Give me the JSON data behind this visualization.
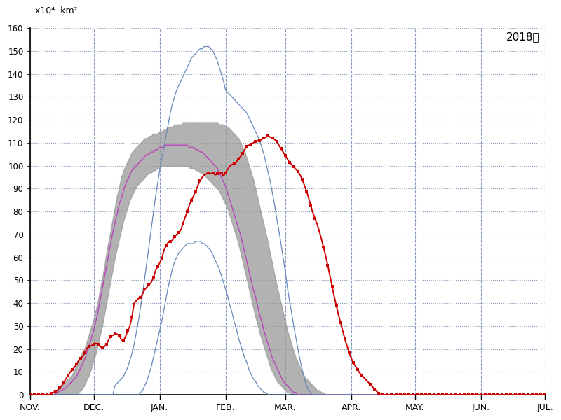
{
  "title": "2018年",
  "ylabel_top": "x10⁴  km²",
  "ylim": [
    0,
    160
  ],
  "yticks": [
    0,
    10,
    20,
    30,
    40,
    50,
    60,
    70,
    80,
    90,
    100,
    110,
    120,
    130,
    140,
    150,
    160
  ],
  "month_labels": [
    "NOV.",
    "DEC.",
    "JAN.",
    "FEB.",
    "MAR.",
    "APR.",
    "MAY.",
    "JUN.",
    "JUL."
  ],
  "background_color": "#ffffff",
  "grid_color": "#8899bb",
  "red_line_color": "#cc0000",
  "blue_line_color": "#6688bb",
  "purple_line_color": "#bb44bb",
  "gray_fill_upper": [
    0,
    0,
    0,
    0,
    0,
    0,
    0,
    0,
    0,
    0,
    0,
    0,
    1,
    2,
    3,
    4,
    5,
    6,
    7,
    8,
    9,
    11,
    13,
    15,
    17,
    19,
    21,
    24,
    27,
    30,
    33,
    37,
    41,
    46,
    51,
    56,
    62,
    67,
    72,
    77,
    82,
    87,
    91,
    95,
    98,
    100,
    102,
    104,
    106,
    107,
    108,
    109,
    110,
    111,
    112,
    112,
    113,
    113,
    114,
    114,
    114,
    115,
    115,
    116,
    116,
    117,
    117,
    117,
    118,
    118,
    118,
    118,
    119,
    119,
    119,
    119,
    119,
    119,
    119,
    119,
    119,
    119,
    119,
    119,
    119,
    119,
    119,
    119,
    119,
    118,
    118,
    118,
    117,
    117,
    116,
    115,
    114,
    113,
    112,
    110,
    108,
    106,
    103,
    100,
    97,
    94,
    90,
    86,
    82,
    78,
    74,
    70,
    66,
    61,
    57,
    52,
    48,
    44,
    40,
    36,
    32,
    28,
    25,
    22,
    19,
    16,
    14,
    12,
    10,
    8,
    7,
    6,
    5,
    4,
    3,
    2,
    2,
    1,
    1,
    0,
    0,
    0,
    0,
    0,
    0,
    0,
    0,
    0,
    0,
    0,
    0,
    0,
    0,
    0,
    0,
    0,
    0,
    0,
    0,
    0,
    0,
    0,
    0,
    0,
    0,
    0,
    0,
    0,
    0,
    0,
    0,
    0,
    0,
    0,
    0,
    0,
    0,
    0,
    0,
    0,
    0,
    0,
    0,
    0,
    0,
    0,
    0,
    0,
    0,
    0,
    0,
    0,
    0,
    0,
    0,
    0,
    0,
    0,
    0,
    0,
    0,
    0,
    0,
    0,
    0,
    0,
    0,
    0,
    0,
    0,
    0,
    0,
    0,
    0,
    0,
    0,
    0,
    0,
    0,
    0,
    0,
    0,
    0,
    0,
    0,
    0,
    0,
    0,
    0,
    0,
    0,
    0,
    0,
    0,
    0,
    0,
    0,
    0,
    0,
    0,
    0,
    0,
    0
  ],
  "gray_fill_lower": [
    0,
    0,
    0,
    0,
    0,
    0,
    0,
    0,
    0,
    0,
    0,
    0,
    0,
    0,
    0,
    0,
    0,
    0,
    0,
    0,
    0,
    0,
    0,
    1,
    2,
    3,
    5,
    7,
    9,
    12,
    15,
    18,
    22,
    26,
    30,
    35,
    40,
    45,
    50,
    55,
    60,
    64,
    68,
    72,
    76,
    79,
    82,
    85,
    87,
    89,
    91,
    92,
    93,
    94,
    95,
    96,
    97,
    97,
    98,
    98,
    99,
    99,
    100,
    100,
    100,
    100,
    100,
    100,
    100,
    100,
    100,
    100,
    100,
    100,
    100,
    99,
    99,
    99,
    98,
    98,
    97,
    97,
    96,
    95,
    94,
    93,
    92,
    91,
    90,
    89,
    87,
    85,
    83,
    81,
    78,
    75,
    72,
    69,
    66,
    62,
    58,
    54,
    50,
    46,
    42,
    38,
    34,
    31,
    27,
    24,
    21,
    18,
    15,
    12,
    10,
    8,
    6,
    5,
    4,
    3,
    2,
    1,
    1,
    0,
    0,
    0,
    0,
    0,
    0,
    0,
    0,
    0,
    0,
    0,
    0,
    0,
    0,
    0,
    0,
    0,
    0,
    0,
    0,
    0,
    0,
    0,
    0,
    0,
    0,
    0,
    0,
    0,
    0,
    0,
    0,
    0,
    0,
    0,
    0,
    0,
    0,
    0,
    0,
    0,
    0,
    0,
    0,
    0,
    0,
    0,
    0,
    0,
    0,
    0,
    0,
    0,
    0,
    0,
    0,
    0,
    0,
    0,
    0,
    0,
    0,
    0,
    0,
    0,
    0,
    0,
    0,
    0,
    0,
    0,
    0,
    0,
    0,
    0,
    0,
    0,
    0,
    0,
    0,
    0,
    0,
    0,
    0,
    0,
    0,
    0,
    0,
    0,
    0,
    0,
    0,
    0,
    0,
    0,
    0,
    0,
    0,
    0,
    0,
    0,
    0,
    0,
    0,
    0,
    0,
    0,
    0,
    0,
    0,
    0,
    0,
    0,
    0,
    0,
    0,
    0,
    0,
    0,
    0
  ],
  "purple_mean": [
    0,
    0,
    0,
    0,
    0,
    0,
    0,
    0,
    0,
    0,
    0,
    0,
    0.5,
    1,
    1.5,
    2,
    2.5,
    3,
    4,
    5,
    6,
    7,
    8,
    10,
    12,
    14,
    16,
    19,
    22,
    25,
    28,
    32,
    36,
    41,
    46,
    51,
    56,
    61,
    66,
    71,
    75,
    79,
    83,
    86,
    89,
    92,
    94,
    96,
    98,
    99,
    100,
    101,
    102,
    103,
    104,
    105,
    105,
    106,
    106,
    107,
    107,
    108,
    108,
    108,
    109,
    109,
    109,
    109,
    109,
    109,
    109,
    109,
    109,
    109,
    109,
    108,
    108,
    108,
    107,
    107,
    106,
    106,
    105,
    104,
    103,
    102,
    101,
    100,
    99,
    97,
    95,
    93,
    91,
    88,
    85,
    82,
    79,
    76,
    73,
    70,
    66,
    62,
    58,
    54,
    50,
    46,
    43,
    39,
    35,
    32,
    28,
    25,
    22,
    19,
    16,
    14,
    12,
    10,
    8,
    6,
    5,
    4,
    3,
    2,
    1,
    1,
    0,
    0,
    0,
    0,
    0,
    0,
    0,
    0,
    0,
    0,
    0,
    0,
    0,
    0,
    0,
    0,
    0,
    0,
    0,
    0,
    0,
    0,
    0,
    0,
    0,
    0,
    0,
    0,
    0,
    0,
    0,
    0,
    0,
    0,
    0,
    0,
    0,
    0,
    0,
    0,
    0,
    0,
    0,
    0,
    0,
    0,
    0,
    0,
    0,
    0,
    0,
    0,
    0,
    0,
    0,
    0,
    0,
    0,
    0,
    0,
    0,
    0,
    0,
    0,
    0,
    0,
    0,
    0,
    0,
    0,
    0,
    0,
    0,
    0,
    0,
    0,
    0,
    0,
    0,
    0,
    0,
    0,
    0,
    0,
    0,
    0,
    0,
    0,
    0,
    0,
    0,
    0,
    0,
    0,
    0,
    0,
    0,
    0,
    0,
    0,
    0,
    0,
    0,
    0,
    0,
    0,
    0,
    0,
    0,
    0,
    0,
    0,
    0,
    0,
    0,
    0,
    0
  ],
  "blue_max": [
    0,
    0,
    0,
    0,
    0,
    0,
    0,
    0,
    0,
    0,
    0,
    0,
    0,
    0,
    0,
    0,
    0,
    0,
    0,
    0,
    0,
    0,
    0,
    0,
    0,
    0,
    0,
    0,
    0,
    0,
    0,
    0,
    0,
    0,
    0,
    0,
    0,
    0,
    0,
    0,
    4,
    5,
    6,
    7,
    8,
    10,
    12,
    15,
    18,
    22,
    27,
    32,
    38,
    44,
    51,
    58,
    65,
    72,
    79,
    86,
    92,
    98,
    103,
    108,
    113,
    118,
    123,
    127,
    130,
    133,
    135,
    137,
    139,
    141,
    143,
    145,
    147,
    148,
    149,
    150,
    151,
    151,
    152,
    152,
    152,
    151,
    150,
    148,
    146,
    143,
    140,
    137,
    133,
    132,
    131,
    130,
    129,
    128,
    127,
    126,
    125,
    124,
    123,
    121,
    119,
    117,
    115,
    113,
    111,
    108,
    105,
    101,
    97,
    93,
    88,
    83,
    77,
    72,
    66,
    60,
    54,
    47,
    41,
    36,
    30,
    25,
    20,
    15,
    11,
    7,
    4,
    2,
    1,
    0,
    0,
    0,
    0,
    0,
    0,
    0,
    0,
    0,
    0,
    0,
    0,
    0,
    0,
    0,
    0,
    0,
    0,
    0,
    0,
    0,
    0,
    0,
    0,
    0,
    0,
    0,
    0,
    0,
    0,
    0,
    0,
    0,
    0,
    0,
    0,
    0,
    0,
    0,
    0,
    0,
    0,
    0,
    0,
    0,
    0,
    0,
    0,
    0,
    0,
    0,
    0,
    0,
    0,
    0,
    0,
    0,
    0,
    0,
    0,
    0,
    0,
    0,
    0,
    0,
    0,
    0,
    0,
    0,
    0,
    0,
    0,
    0,
    0,
    0,
    0,
    0,
    0,
    0,
    0,
    0,
    0,
    0,
    0,
    0,
    0,
    0,
    0,
    0,
    0,
    0,
    0,
    0,
    0,
    0,
    0,
    0,
    0,
    0,
    0,
    0,
    0,
    0,
    0,
    0,
    0,
    0,
    0,
    0,
    0
  ],
  "blue_min": [
    0,
    0,
    0,
    0,
    0,
    0,
    0,
    0,
    0,
    0,
    0,
    0,
    0,
    0,
    0,
    0,
    0,
    0,
    0,
    0,
    0,
    0,
    0,
    0,
    0,
    0,
    0,
    0,
    0,
    0,
    0,
    0,
    0,
    0,
    0,
    0,
    0,
    0,
    0,
    0,
    0,
    0,
    0,
    0,
    0,
    0,
    0,
    0,
    0,
    0,
    0,
    0,
    1,
    2,
    4,
    6,
    9,
    12,
    16,
    20,
    24,
    28,
    32,
    37,
    42,
    47,
    51,
    55,
    58,
    60,
    62,
    63,
    64,
    65,
    66,
    66,
    66,
    66,
    67,
    67,
    67,
    66,
    66,
    65,
    64,
    63,
    61,
    59,
    57,
    55,
    52,
    49,
    46,
    43,
    39,
    36,
    32,
    29,
    25,
    22,
    19,
    16,
    14,
    11,
    9,
    7,
    6,
    4,
    3,
    2,
    1,
    1,
    0,
    0,
    0,
    0,
    0,
    0,
    0,
    0,
    0,
    0,
    0,
    0,
    0,
    0,
    0,
    0,
    0,
    0,
    0,
    0,
    0,
    0,
    0,
    0,
    0,
    0,
    0,
    0,
    0,
    0,
    0,
    0,
    0,
    0,
    0,
    0,
    0,
    0,
    0,
    0,
    0,
    0,
    0,
    0,
    0,
    0,
    0,
    0,
    0,
    0,
    0,
    0,
    0,
    0,
    0,
    0,
    0,
    0,
    0,
    0,
    0,
    0,
    0,
    0,
    0,
    0,
    0,
    0,
    0,
    0,
    0,
    0,
    0,
    0,
    0,
    0,
    0,
    0,
    0,
    0,
    0,
    0,
    0,
    0,
    0,
    0,
    0,
    0,
    0,
    0,
    0,
    0,
    0,
    0,
    0,
    0,
    0,
    0,
    0,
    0,
    0,
    0,
    0,
    0,
    0,
    0,
    0,
    0,
    0,
    0,
    0,
    0,
    0,
    0,
    0,
    0,
    0,
    0,
    0,
    0,
    0,
    0,
    0,
    0,
    0,
    0,
    0,
    0,
    0,
    0,
    0
  ],
  "red_data": [
    0.0,
    0.0,
    0.0,
    0.0,
    0.0,
    0.0,
    0.0,
    0.0,
    0.0,
    0.0,
    0.5,
    1.0,
    1.5,
    2.0,
    3.0,
    4.0,
    5.5,
    7.0,
    8.5,
    10.0,
    11.0,
    12.0,
    13.5,
    15.0,
    16.0,
    17.0,
    18.5,
    20.5,
    21.0,
    21.5,
    22.0,
    22.5,
    22.0,
    21.0,
    20.5,
    21.0,
    22.0,
    24.0,
    25.5,
    26.0,
    26.5,
    26.5,
    26.0,
    24.0,
    23.5,
    25.5,
    28.0,
    30.0,
    34.0,
    40.0,
    41.0,
    42.0,
    42.5,
    44.0,
    46.0,
    47.0,
    48.0,
    49.0,
    51.0,
    54.0,
    56.0,
    57.5,
    59.5,
    63.0,
    65.0,
    66.5,
    67.0,
    67.5,
    69.0,
    70.0,
    71.0,
    72.0,
    75.0,
    77.5,
    80.0,
    83.0,
    85.0,
    87.0,
    89.0,
    91.5,
    93.5,
    95.0,
    96.0,
    96.5,
    97.0,
    96.5,
    97.0,
    96.0,
    96.5,
    97.0,
    97.0,
    95.5,
    97.0,
    98.5,
    100.0,
    100.5,
    101.0,
    101.5,
    103.0,
    104.0,
    105.5,
    107.0,
    108.5,
    109.0,
    109.5,
    110.0,
    110.5,
    111.0,
    111.0,
    111.5,
    112.0,
    112.5,
    113.0,
    112.5,
    112.0,
    111.5,
    110.5,
    109.0,
    107.5,
    106.0,
    104.5,
    103.0,
    101.5,
    100.5,
    99.5,
    98.5,
    97.5,
    96.0,
    94.0,
    91.5,
    89.0,
    86.0,
    82.5,
    79.5,
    77.0,
    74.5,
    71.5,
    68.0,
    64.5,
    60.5,
    56.5,
    52.0,
    47.5,
    43.0,
    39.0,
    35.0,
    31.5,
    28.0,
    24.5,
    21.5,
    18.5,
    16.0,
    14.0,
    12.5,
    11.0,
    9.5,
    8.5,
    7.5,
    6.5,
    5.5,
    4.5,
    3.5,
    2.5,
    1.5,
    0.5,
    0.0,
    0.0,
    0.0,
    0.0,
    0.0,
    0.0,
    0.0,
    0.0,
    0.0,
    0.0,
    0.0,
    0.0,
    0.0,
    0.0,
    0.0,
    0.0,
    0.0,
    0.0,
    0.0,
    0.0,
    0.0,
    0.0,
    0.0,
    0.0,
    0.0,
    0.0,
    0.0,
    0.0,
    0.0,
    0.0,
    0.0,
    0.0,
    0.0,
    0.0,
    0.0,
    0.0,
    0.0,
    0.0,
    0.0,
    0.0,
    0.0,
    0.0,
    0.0,
    0.0,
    0.0,
    0.0,
    0.0,
    0.0,
    0.0,
    0.0,
    0.0,
    0.0,
    0.0,
    0.0,
    0.0,
    0.0,
    0.0,
    0.0,
    0.0,
    0.0,
    0.0,
    0.0,
    0.0,
    0.0,
    0.0,
    0.0,
    0.0,
    0.0,
    0.0,
    0.0,
    0.0,
    0.0,
    0.0,
    0.0,
    0.0,
    0.0,
    0.0,
    0.0
  ],
  "n_days": 243,
  "month_day_starts": [
    0,
    30,
    61,
    92,
    120,
    151,
    181,
    212,
    242
  ]
}
